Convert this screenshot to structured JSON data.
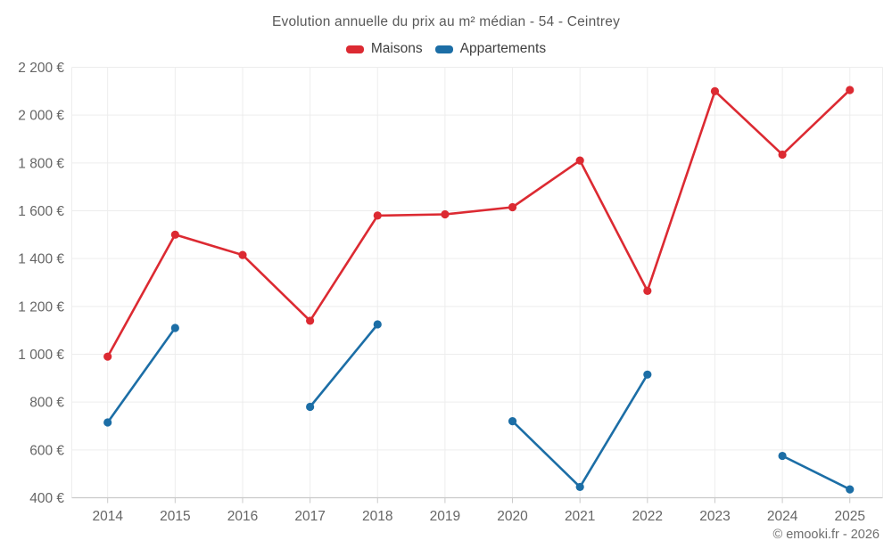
{
  "header": {
    "title": "Evolution annuelle du prix au m² médian - 54 - Ceintrey"
  },
  "legend": [
    {
      "label": "Maisons",
      "color": "#dc2a32"
    },
    {
      "label": "Appartements",
      "color": "#1c6ea6"
    }
  ],
  "footer": {
    "credit": "© emooki.fr - 2026"
  },
  "colors": {
    "maisons": "#dc2a32",
    "appartements": "#1c6ea6",
    "gridline": "#ededed",
    "axis_line": "#c9c9c9",
    "tick_label": "#666666",
    "title_text": "#595959"
  },
  "chart_data": {
    "type": "line",
    "title": "Evolution annuelle du prix au m² médian - 54 - Ceintrey",
    "categories": [
      "2014",
      "2015",
      "2016",
      "2017",
      "2018",
      "2019",
      "2020",
      "2021",
      "2022",
      "2023",
      "2024",
      "2025"
    ],
    "series": [
      {
        "name": "Maisons",
        "color": "#dc2a32",
        "values": [
          990,
          1500,
          1415,
          1140,
          1580,
          1585,
          1615,
          1810,
          1265,
          2100,
          1835,
          2105
        ]
      },
      {
        "name": "Appartements",
        "color": "#1c6ea6",
        "values": [
          715,
          1110,
          null,
          780,
          1125,
          null,
          720,
          445,
          915,
          null,
          575,
          435
        ]
      }
    ],
    "xlabel": "",
    "ylabel": "",
    "ylim": [
      400,
      2200
    ],
    "yticks": [
      400,
      600,
      800,
      1000,
      1200,
      1400,
      1600,
      1800,
      2000,
      2200
    ],
    "ytick_labels": [
      "400 €",
      "600 €",
      "800 €",
      "1 000 €",
      "1 200 €",
      "1 400 €",
      "1 600 €",
      "1 800 €",
      "2 000 €",
      "2 200 €"
    ],
    "grid": true,
    "legend_position": "top",
    "annotations": [
      "© emooki.fr - 2026"
    ]
  }
}
